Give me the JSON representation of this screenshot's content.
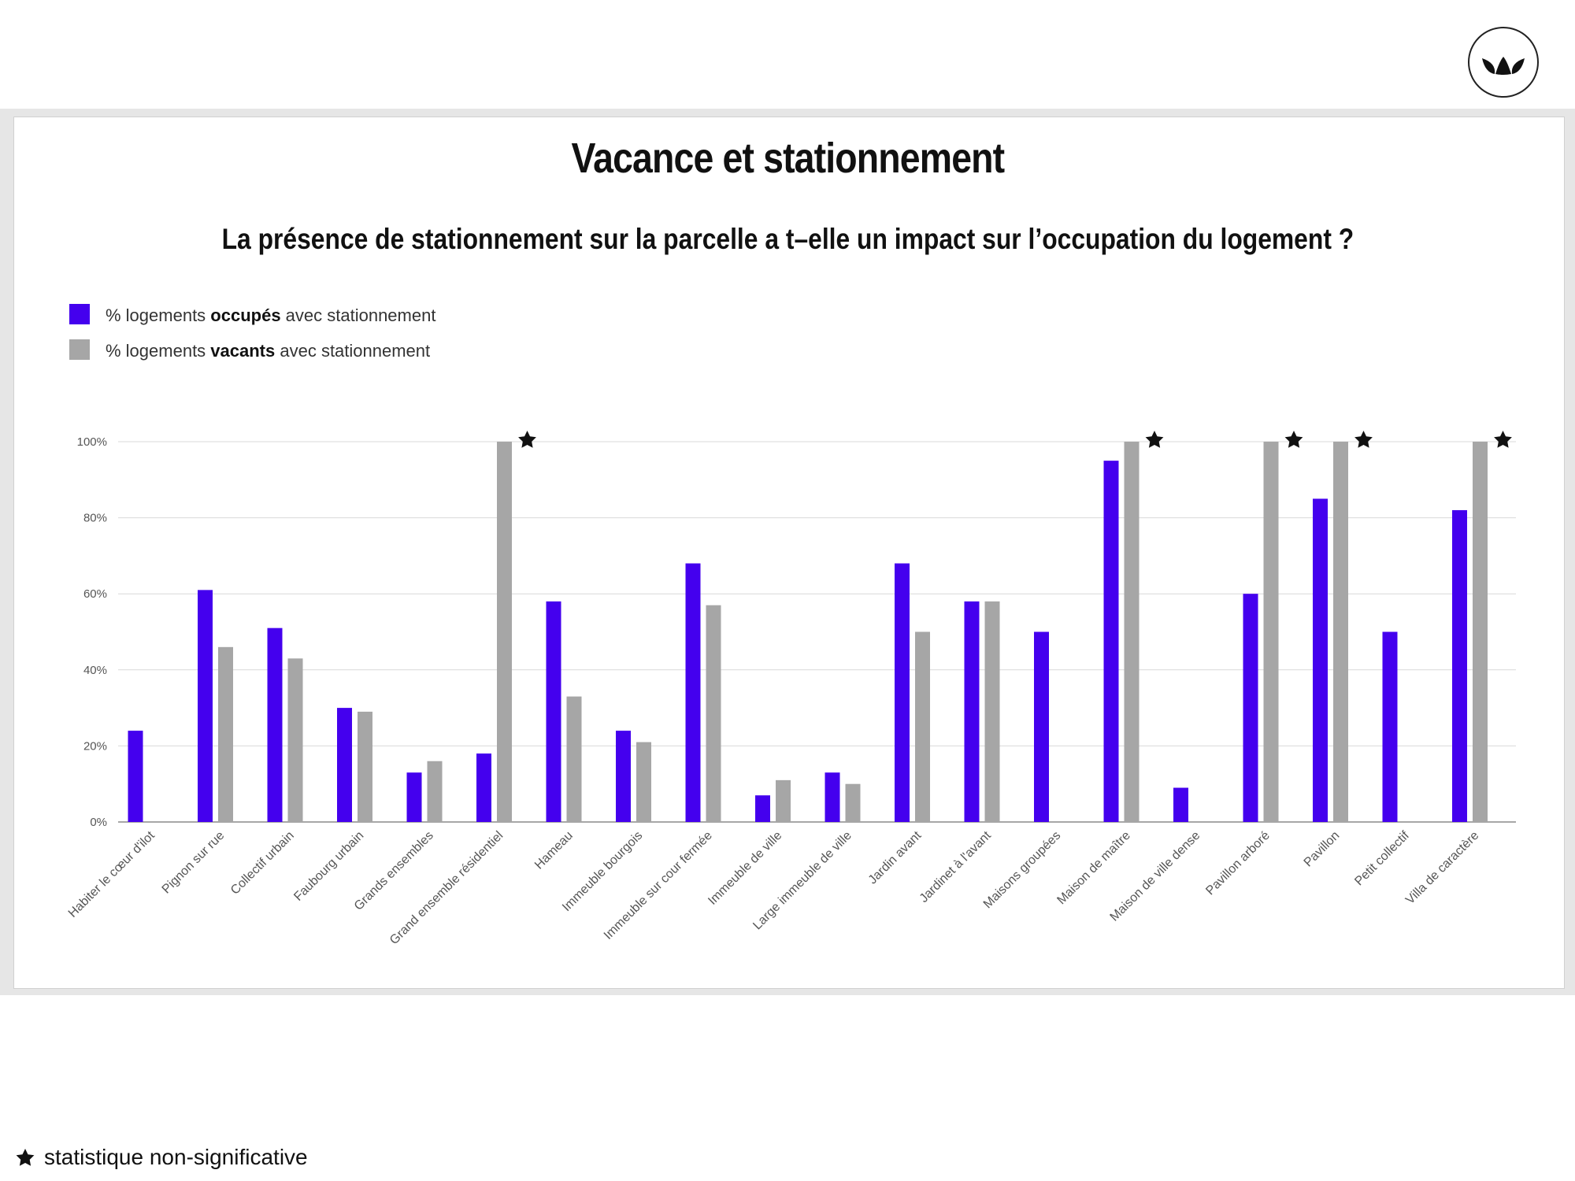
{
  "title": "Vacance et stationnement",
  "subtitle": "La présence de stationnement sur la parcelle a t–elle un impact sur l’occupation du logement ?",
  "legend": {
    "occupied": {
      "prefix": "% logements ",
      "bold": "occupés",
      "suffix": " avec stationnement",
      "color": "#4400ee"
    },
    "vacant": {
      "prefix": "% logements ",
      "bold": "vacants",
      "suffix": " avec stationnement",
      "color": "#a6a6a6"
    }
  },
  "footnote": {
    "icon": "star-icon",
    "text": "statistique non-significative"
  },
  "logo": {
    "icon": "leaves-logo-icon"
  },
  "chart_data": {
    "type": "bar",
    "ylim": [
      0,
      100
    ],
    "yticks": [
      "0%",
      "20%",
      "40%",
      "60%",
      "80%",
      "100%"
    ],
    "grid": true,
    "legend_position": "top-left",
    "categories": [
      "Habiter le cœur d'ilot",
      "Pignon sur rue",
      "Collectif urbain",
      "Faubourg urbain",
      "Grands ensembles",
      "Grand ensemble résidentiel",
      "Hameau",
      "Immeuble bourgois",
      "Immeuble sur cour fermée",
      "Immeuble de ville",
      "Large immeuble de ville",
      "Jardin avant",
      "Jardinet à l'avant",
      "Maisons groupées",
      "Maison de maître",
      "Maison de ville dense",
      "Pavillon arboré",
      "Pavillon",
      "Petit collectif",
      "Villa de caractère"
    ],
    "series": [
      {
        "name": "% logements occupés avec stationnement",
        "color": "#4400ee",
        "values": [
          24,
          61,
          51,
          30,
          13,
          18,
          58,
          24,
          68,
          7,
          13,
          68,
          58,
          50,
          95,
          9,
          60,
          85,
          50,
          82
        ]
      },
      {
        "name": "% logements vacants avec stationnement",
        "color": "#a6a6a6",
        "values": [
          0,
          46,
          43,
          29,
          16,
          100,
          33,
          21,
          57,
          11,
          10,
          50,
          58,
          0,
          100,
          0,
          100,
          100,
          0,
          100
        ]
      }
    ],
    "starred_categories": [
      "Grand ensemble résidentiel",
      "Maison de maître",
      "Pavillon arboré",
      "Pavillon",
      "Villa de caractère"
    ]
  }
}
